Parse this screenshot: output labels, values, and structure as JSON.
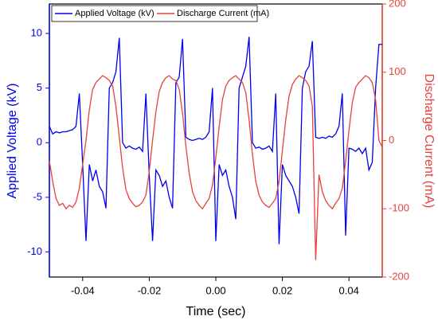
{
  "chart_data": {
    "type": "line",
    "xlabel": "Time (sec)",
    "ylabel": "Applied Voltage (kV)",
    "y2label": "Discharge Current (mA)",
    "legend": "upper left",
    "xlim": [
      -0.05,
      0.05
    ],
    "xticks": [
      -0.04,
      -0.02,
      {
        "value": 0,
        "label": "0.00"
      },
      0.02,
      0.04
    ],
    "ylim": [
      -12.3,
      12.7
    ],
    "yticks": [
      -10,
      -5,
      0,
      5,
      10
    ],
    "y2lim": [
      -200,
      200
    ],
    "y2ticks": [
      -200,
      -100,
      0,
      100,
      200
    ],
    "x": [
      -0.05,
      -0.049,
      -0.048,
      -0.047,
      -0.046,
      -0.045,
      -0.044,
      -0.043,
      -0.042,
      -0.041,
      -0.04,
      -0.039,
      -0.038,
      -0.037,
      -0.036,
      -0.035,
      -0.034,
      -0.033,
      -0.032,
      -0.031,
      -0.03,
      -0.029,
      -0.028,
      -0.027,
      -0.026,
      -0.025,
      -0.024,
      -0.023,
      -0.022,
      -0.021,
      -0.02,
      -0.019,
      -0.018,
      -0.017,
      -0.016,
      -0.015,
      -0.014,
      -0.013,
      -0.012,
      -0.011,
      -0.01,
      -0.009,
      -0.008,
      -0.007,
      -0.006,
      -0.005,
      -0.004,
      -0.003,
      -0.002,
      -0.001,
      0,
      0.001,
      0.002,
      0.003,
      0.004,
      0.005,
      0.006,
      0.007,
      0.008,
      0.009,
      0.01,
      0.011,
      0.012,
      0.013,
      0.014,
      0.015,
      0.016,
      0.017,
      0.018,
      0.019,
      0.02,
      0.021,
      0.022,
      0.023,
      0.024,
      0.025,
      0.026,
      0.027,
      0.028,
      0.029,
      0.03,
      0.031,
      0.032,
      0.033,
      0.034,
      0.035,
      0.036,
      0.037,
      0.038,
      0.039,
      0.04,
      0.041,
      0.042,
      0.043,
      0.044,
      0.045,
      0.046,
      0.047,
      0.048,
      0.049,
      0.05
    ],
    "series": [
      {
        "name": "Applied Voltage (kV)",
        "color": "#0000ee",
        "axis": "y",
        "values": [
          1.5,
          0.8,
          1,
          0.9,
          1,
          1,
          1.1,
          1.2,
          1.5,
          4.5,
          -2,
          -9,
          -2,
          -3.5,
          -2.5,
          -4,
          -4.5,
          -6,
          5,
          5.5,
          6.5,
          9.6,
          0,
          -0.5,
          -0.3,
          -0.5,
          -0.6,
          -0.4,
          -0.8,
          4.5,
          -3,
          -9,
          -2.5,
          -3,
          -4,
          -3.5,
          -5,
          -6,
          5.5,
          6,
          9.5,
          0.5,
          0.3,
          0.2,
          0.3,
          0.4,
          0.3,
          0.5,
          1,
          5,
          -9,
          -2,
          -3,
          -2.5,
          -4,
          -5,
          -7,
          5,
          6,
          7,
          9.7,
          0,
          -0.5,
          -0.4,
          -0.6,
          -0.5,
          -0.3,
          -0.8,
          4.5,
          -9.3,
          -2,
          -3,
          -3.5,
          -4,
          -5,
          -6.5,
          5,
          6.5,
          7,
          9.3,
          0.5,
          0.4,
          0.5,
          0.4,
          0.6,
          0.5,
          0.8,
          1.5,
          4.5,
          -8.5,
          -0.5,
          -0.6,
          -0.8,
          -0.5,
          -1,
          -0.5,
          -2.5,
          -1.8,
          5,
          9,
          9
        ]
      },
      {
        "name": "Discharge Current (mA)",
        "color": "#e8403a",
        "axis": "y2",
        "values": [
          -30,
          -60,
          -85,
          -95,
          -92,
          -100,
          -95,
          -98,
          -90,
          -70,
          -35,
          0,
          45,
          75,
          85,
          90,
          95,
          92,
          88,
          80,
          50,
          5,
          -40,
          -72,
          -85,
          -92,
          -97,
          -95,
          -90,
          -80,
          -45,
          0,
          42,
          72,
          85,
          92,
          95,
          90,
          88,
          75,
          40,
          -8,
          -48,
          -75,
          -88,
          -95,
          -100,
          -92,
          -85,
          -65,
          -25,
          20,
          60,
          80,
          88,
          92,
          95,
          90,
          85,
          70,
          30,
          -20,
          -60,
          -80,
          -90,
          -95,
          -98,
          -92,
          -85,
          -60,
          -15,
          30,
          65,
          82,
          90,
          95,
          92,
          88,
          80,
          50,
          -175,
          -50,
          -75,
          -88,
          -95,
          -100,
          -92,
          -85,
          -70,
          -30,
          15,
          55,
          78,
          85,
          90,
          95,
          92,
          85,
          60,
          0,
          -10
        ]
      }
    ]
  }
}
